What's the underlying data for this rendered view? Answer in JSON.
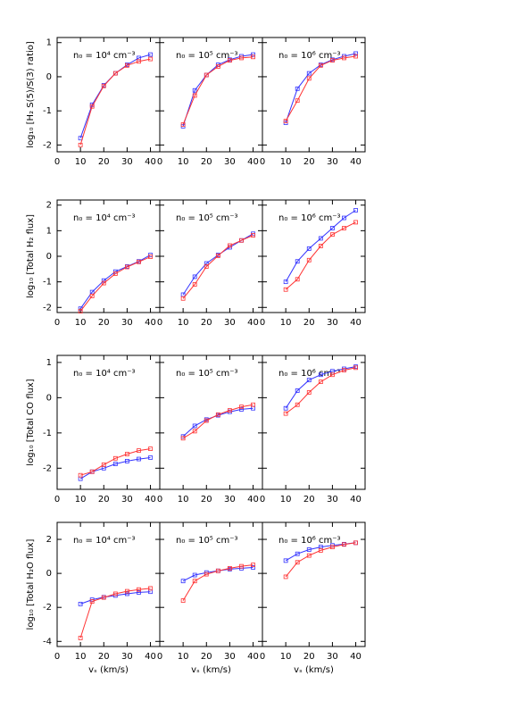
{
  "chart_data": [
    {
      "type": "line",
      "annotation": "n₀ = 10⁴ cm⁻³",
      "ylabel": "log₁₀ [H₂ S(5)/S(3) ratio]",
      "x": [
        10,
        15,
        20,
        25,
        30,
        35,
        40
      ],
      "xlim": [
        0,
        44
      ],
      "xticks": [
        0,
        10,
        20,
        30,
        40
      ],
      "ylim": [
        -2.2,
        1.15
      ],
      "yticks": [
        -2,
        -1,
        0,
        1
      ],
      "series": [
        {
          "color": "#3333ff",
          "values": [
            -1.8,
            -0.82,
            -0.25,
            0.1,
            0.35,
            0.55,
            0.65
          ]
        },
        {
          "color": "#ff3333",
          "values": [
            -2.0,
            -0.87,
            -0.27,
            0.1,
            0.33,
            0.45,
            0.52
          ]
        }
      ]
    },
    {
      "type": "line",
      "annotation": "n₀ = 10⁵ cm⁻³",
      "x": [
        10,
        15,
        20,
        25,
        30,
        35,
        40
      ],
      "xlim": [
        0,
        44
      ],
      "xticks": [
        0,
        10,
        20,
        30,
        40
      ],
      "ylim": [
        -2.2,
        1.15
      ],
      "series": [
        {
          "color": "#3333ff",
          "values": [
            -1.45,
            -0.4,
            0.05,
            0.35,
            0.5,
            0.6,
            0.65
          ]
        },
        {
          "color": "#ff3333",
          "values": [
            -1.4,
            -0.55,
            0.05,
            0.3,
            0.48,
            0.55,
            0.58
          ]
        }
      ]
    },
    {
      "type": "line",
      "annotation": "n₀ = 10⁶ cm⁻³",
      "x": [
        10,
        15,
        20,
        25,
        30,
        35,
        40
      ],
      "xlim": [
        0,
        44
      ],
      "xticks": [
        0,
        10,
        20,
        30,
        40
      ],
      "ylim": [
        -2.2,
        1.15
      ],
      "series": [
        {
          "color": "#3333ff",
          "values": [
            -1.35,
            -0.35,
            0.1,
            0.35,
            0.5,
            0.6,
            0.68
          ]
        },
        {
          "color": "#ff3333",
          "values": [
            -1.3,
            -0.7,
            -0.05,
            0.33,
            0.48,
            0.55,
            0.6
          ]
        }
      ]
    },
    {
      "type": "line",
      "annotation": "n₀ = 10⁴ cm⁻³",
      "ylabel": "log₁₀ [Total H₂ flux]",
      "x": [
        10,
        15,
        20,
        25,
        30,
        35,
        40
      ],
      "xlim": [
        0,
        44
      ],
      "xticks": [
        0,
        10,
        20,
        30,
        40
      ],
      "ylim": [
        -2.2,
        2.2
      ],
      "yticks": [
        -2,
        -1,
        0,
        1,
        2
      ],
      "series": [
        {
          "color": "#3333ff",
          "values": [
            -2.05,
            -1.4,
            -0.95,
            -0.6,
            -0.4,
            -0.2,
            0.05
          ]
        },
        {
          "color": "#ff3333",
          "values": [
            -2.15,
            -1.55,
            -1.05,
            -0.68,
            -0.42,
            -0.22,
            -0.02
          ]
        }
      ]
    },
    {
      "type": "line",
      "annotation": "n₀ = 10⁵ cm⁻³",
      "x": [
        10,
        15,
        20,
        25,
        30,
        35,
        40
      ],
      "xlim": [
        0,
        44
      ],
      "xticks": [
        0,
        10,
        20,
        30,
        40
      ],
      "ylim": [
        -2.2,
        2.2
      ],
      "series": [
        {
          "color": "#3333ff",
          "values": [
            -1.5,
            -0.8,
            -0.28,
            0.05,
            0.35,
            0.62,
            0.88
          ]
        },
        {
          "color": "#ff3333",
          "values": [
            -1.65,
            -1.1,
            -0.4,
            0.02,
            0.42,
            0.62,
            0.82
          ]
        }
      ]
    },
    {
      "type": "line",
      "annotation": "n₀ = 10⁶ cm⁻³",
      "x": [
        10,
        15,
        20,
        25,
        30,
        35,
        40
      ],
      "xlim": [
        0,
        44
      ],
      "xticks": [
        0,
        10,
        20,
        30,
        40
      ],
      "ylim": [
        -2.2,
        2.2
      ],
      "series": [
        {
          "color": "#3333ff",
          "values": [
            -1.0,
            -0.2,
            0.3,
            0.7,
            1.1,
            1.5,
            1.8
          ]
        },
        {
          "color": "#ff3333",
          "values": [
            -1.3,
            -0.9,
            -0.15,
            0.4,
            0.85,
            1.1,
            1.33
          ]
        }
      ]
    },
    {
      "type": "line",
      "annotation": "n₀ = 10⁴ cm⁻³",
      "ylabel": "log₁₀ [Total CO flux]",
      "x": [
        10,
        15,
        20,
        25,
        30,
        35,
        40
      ],
      "xlim": [
        0,
        44
      ],
      "xticks": [
        0,
        10,
        20,
        30,
        40
      ],
      "ylim": [
        -2.6,
        1.2
      ],
      "yticks": [
        -2,
        -1,
        0,
        1
      ],
      "series": [
        {
          "color": "#3333ff",
          "values": [
            -2.3,
            -2.1,
            -2.0,
            -1.88,
            -1.8,
            -1.74,
            -1.7
          ]
        },
        {
          "color": "#ff3333",
          "values": [
            -2.2,
            -2.1,
            -1.9,
            -1.72,
            -1.6,
            -1.5,
            -1.45
          ]
        }
      ]
    },
    {
      "type": "line",
      "annotation": "n₀ = 10⁵ cm⁻³",
      "x": [
        10,
        15,
        20,
        25,
        30,
        35,
        40
      ],
      "xlim": [
        0,
        44
      ],
      "xticks": [
        0,
        10,
        20,
        30,
        40
      ],
      "ylim": [
        -2.6,
        1.2
      ],
      "series": [
        {
          "color": "#3333ff",
          "values": [
            -1.1,
            -0.8,
            -0.62,
            -0.5,
            -0.4,
            -0.33,
            -0.3
          ]
        },
        {
          "color": "#ff3333",
          "values": [
            -1.15,
            -0.95,
            -0.65,
            -0.48,
            -0.36,
            -0.26,
            -0.2
          ]
        }
      ]
    },
    {
      "type": "line",
      "annotation": "n₀ = 10⁶ cm⁻³",
      "x": [
        10,
        15,
        20,
        25,
        30,
        35,
        40
      ],
      "xlim": [
        0,
        44
      ],
      "xticks": [
        0,
        10,
        20,
        30,
        40
      ],
      "ylim": [
        -2.6,
        1.2
      ],
      "series": [
        {
          "color": "#3333ff",
          "values": [
            -0.3,
            0.2,
            0.5,
            0.65,
            0.75,
            0.82,
            0.88
          ]
        },
        {
          "color": "#ff3333",
          "values": [
            -0.45,
            -0.2,
            0.15,
            0.45,
            0.65,
            0.78,
            0.85
          ]
        }
      ]
    },
    {
      "type": "line",
      "annotation": "n₀ = 10⁴ cm⁻³",
      "ylabel": "log₁₀ [Total H₂O flux]",
      "xlabel": "vₛ (km/s)",
      "x": [
        10,
        15,
        20,
        25,
        30,
        35,
        40
      ],
      "xlim": [
        0,
        44
      ],
      "xticks": [
        0,
        10,
        20,
        30,
        40
      ],
      "ylim": [
        -4.3,
        3.0
      ],
      "yticks": [
        -4,
        -2,
        0,
        2
      ],
      "series": [
        {
          "color": "#3333ff",
          "values": [
            -1.8,
            -1.55,
            -1.4,
            -1.3,
            -1.2,
            -1.12,
            -1.08
          ]
        },
        {
          "color": "#ff3333",
          "values": [
            -3.8,
            -1.65,
            -1.42,
            -1.2,
            -1.05,
            -0.95,
            -0.88
          ]
        }
      ]
    },
    {
      "type": "line",
      "annotation": "n₀ = 10⁵ cm⁻³",
      "xlabel": "vₛ (km/s)",
      "x": [
        10,
        15,
        20,
        25,
        30,
        35,
        40
      ],
      "xlim": [
        0,
        44
      ],
      "xticks": [
        0,
        10,
        20,
        30,
        40
      ],
      "ylim": [
        -4.3,
        3.0
      ],
      "series": [
        {
          "color": "#3333ff",
          "values": [
            -0.45,
            -0.1,
            0.05,
            0.15,
            0.25,
            0.3,
            0.35
          ]
        },
        {
          "color": "#ff3333",
          "values": [
            -1.6,
            -0.45,
            -0.05,
            0.15,
            0.3,
            0.42,
            0.5
          ]
        }
      ]
    },
    {
      "type": "line",
      "annotation": "n₀ = 10⁶ cm⁻³",
      "xlabel": "vₛ (km/s)",
      "x": [
        10,
        15,
        20,
        25,
        30,
        35,
        40
      ],
      "xlim": [
        0,
        44
      ],
      "xticks": [
        0,
        10,
        20,
        30,
        40
      ],
      "ylim": [
        -4.3,
        3.0
      ],
      "series": [
        {
          "color": "#3333ff",
          "values": [
            0.75,
            1.15,
            1.4,
            1.55,
            1.65,
            1.72,
            1.8
          ]
        },
        {
          "color": "#ff3333",
          "values": [
            -0.2,
            0.65,
            1.05,
            1.35,
            1.55,
            1.7,
            1.8
          ]
        }
      ]
    }
  ]
}
